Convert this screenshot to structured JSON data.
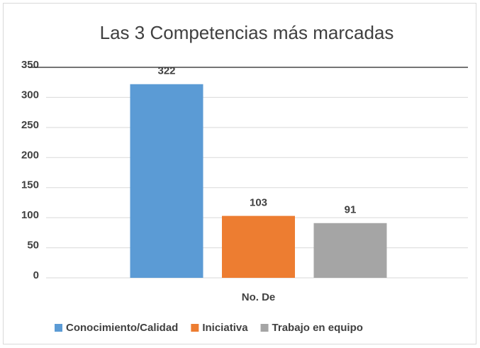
{
  "chart_data": {
    "type": "bar",
    "title": "Las 3 Competencias más marcadas",
    "categories": [
      "No. De"
    ],
    "series": [
      {
        "name": "Conocimiento/Calidad",
        "color": "#5b9bd5",
        "values": [
          322
        ]
      },
      {
        "name": "Iniciativa",
        "color": "#ed7d31",
        "values": [
          103
        ]
      },
      {
        "name": "Trabajo en equipo",
        "color": "#a5a5a5",
        "values": [
          91
        ]
      }
    ],
    "ylim": [
      0,
      350
    ],
    "yticks": [
      0,
      50,
      100,
      150,
      200,
      250,
      300,
      350
    ],
    "grid": true,
    "legend": "bottom"
  }
}
